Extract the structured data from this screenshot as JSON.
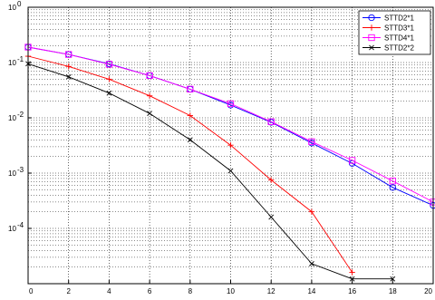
{
  "chart_data": {
    "type": "line",
    "title": "",
    "xlabel": "",
    "ylabel": "",
    "x": [
      0,
      2,
      4,
      6,
      8,
      10,
      12,
      14,
      16,
      18,
      20
    ],
    "xlim": [
      0,
      20
    ],
    "ylim": [
      1e-05,
      1
    ],
    "yscale": "log",
    "grid": true,
    "legend_position": "top-right",
    "x_tick_labels": [
      "0",
      "2",
      "4",
      "6",
      "8",
      "10",
      "12",
      "14",
      "16",
      "18",
      "20"
    ],
    "y_ticks": [
      {
        "base": "10",
        "exp": "0",
        "value": 1
      },
      {
        "base": "10",
        "exp": "-1",
        "value": 0.1
      },
      {
        "base": "10",
        "exp": "-2",
        "value": 0.01
      },
      {
        "base": "10",
        "exp": "-3",
        "value": 0.001
      },
      {
        "base": "10",
        "exp": "-4",
        "value": 0.0001
      }
    ],
    "series": [
      {
        "name": "STTD2*1",
        "color": "#0000ff",
        "marker": "circle",
        "x": [
          0,
          2,
          4,
          6,
          8,
          10,
          12,
          14,
          16,
          18,
          20
        ],
        "values": [
          0.19,
          0.14,
          0.095,
          0.058,
          0.033,
          0.017,
          0.0083,
          0.0035,
          0.0015,
          0.00055,
          0.00026
        ]
      },
      {
        "name": "STTD3*1",
        "color": "#ff0000",
        "marker": "plus",
        "x": [
          0,
          2,
          4,
          6,
          8,
          10,
          12,
          14,
          16
        ],
        "values": [
          0.13,
          0.085,
          0.05,
          0.025,
          0.011,
          0.0032,
          0.00075,
          0.0002,
          1.6e-05
        ]
      },
      {
        "name": "STTD4*1",
        "color": "#ff00ff",
        "marker": "square",
        "x": [
          0,
          2,
          4,
          6,
          8,
          10,
          12,
          14,
          16,
          18,
          20
        ],
        "values": [
          0.19,
          0.14,
          0.093,
          0.058,
          0.033,
          0.018,
          0.0085,
          0.0037,
          0.0017,
          0.00072,
          0.0003
        ]
      },
      {
        "name": "STTD2*2",
        "color": "#000000",
        "marker": "x",
        "x": [
          0,
          2,
          4,
          6,
          8,
          10,
          12,
          14,
          16,
          18
        ],
        "values": [
          0.095,
          0.055,
          0.028,
          0.012,
          0.004,
          0.0011,
          0.00016,
          2.3e-05,
          1.22e-05,
          1.22e-05
        ]
      }
    ]
  }
}
